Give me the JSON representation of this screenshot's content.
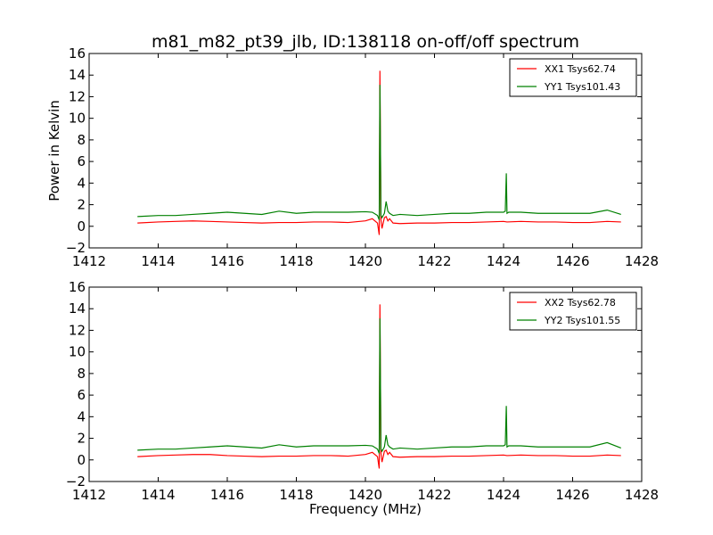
{
  "figure": {
    "title": "m81_m82_pt39_jlb, ID:138118 on-off/off spectrum",
    "xlabel": "Frequency (MHz)",
    "ylabel": "Power in Kelvin"
  },
  "colors": {
    "xx": "#ff0000",
    "yy": "#008000"
  },
  "chart_data": [
    {
      "type": "line",
      "title": "m81_m82_pt39_jlb, ID:138118 on-off/off spectrum",
      "xlabel": "",
      "ylabel": "Power in Kelvin",
      "xlim": [
        1412,
        1428
      ],
      "ylim": [
        -2,
        16
      ],
      "xticks": [
        "1412",
        "1414",
        "1416",
        "1418",
        "1420",
        "1422",
        "1424",
        "1426",
        "1428"
      ],
      "yticks": [
        "−2",
        "0",
        "2",
        "4",
        "6",
        "8",
        "10",
        "12",
        "14",
        "16"
      ],
      "grid": false,
      "legend_position": "top-right",
      "series": [
        {
          "name": "XX1 Tsys62.74",
          "color": "#ff0000",
          "x": [
            1413.4,
            1414.0,
            1414.5,
            1415.0,
            1415.5,
            1416.0,
            1416.5,
            1417.0,
            1417.5,
            1418.0,
            1418.5,
            1419.0,
            1419.5,
            1420.0,
            1420.2,
            1420.35,
            1420.4,
            1420.42,
            1420.45,
            1420.48,
            1420.55,
            1420.6,
            1420.65,
            1420.7,
            1420.8,
            1421.0,
            1421.5,
            1422.0,
            1422.5,
            1423.0,
            1423.5,
            1424.0,
            1424.1,
            1424.5,
            1425.0,
            1425.5,
            1426.0,
            1426.5,
            1427.0,
            1427.4
          ],
          "y": [
            0.3,
            0.4,
            0.45,
            0.5,
            0.45,
            0.4,
            0.35,
            0.3,
            0.35,
            0.35,
            0.4,
            0.4,
            0.35,
            0.5,
            0.7,
            0.3,
            -0.8,
            14.4,
            0.6,
            -0.2,
            0.8,
            0.9,
            0.5,
            0.7,
            0.3,
            0.25,
            0.3,
            0.3,
            0.35,
            0.35,
            0.4,
            0.45,
            0.4,
            0.45,
            0.4,
            0.4,
            0.35,
            0.35,
            0.45,
            0.4
          ]
        },
        {
          "name": "YY1 Tsys101.43",
          "color": "#008000",
          "x": [
            1413.4,
            1414.0,
            1414.5,
            1415.0,
            1415.5,
            1416.0,
            1416.5,
            1417.0,
            1417.5,
            1418.0,
            1418.5,
            1419.0,
            1419.5,
            1420.0,
            1420.2,
            1420.35,
            1420.4,
            1420.42,
            1420.45,
            1420.48,
            1420.55,
            1420.6,
            1420.65,
            1420.7,
            1420.8,
            1421.0,
            1421.5,
            1422.0,
            1422.5,
            1423.0,
            1423.5,
            1424.0,
            1424.05,
            1424.08,
            1424.1,
            1424.15,
            1424.5,
            1425.0,
            1425.5,
            1426.0,
            1426.5,
            1427.0,
            1427.4
          ],
          "y": [
            0.9,
            1.0,
            1.0,
            1.1,
            1.2,
            1.3,
            1.2,
            1.1,
            1.4,
            1.2,
            1.3,
            1.3,
            1.3,
            1.35,
            1.3,
            1.0,
            0.6,
            13.1,
            1.0,
            0.8,
            1.2,
            2.3,
            1.4,
            1.2,
            1.0,
            1.1,
            1.0,
            1.1,
            1.2,
            1.2,
            1.3,
            1.3,
            1.4,
            4.9,
            1.2,
            1.3,
            1.3,
            1.2,
            1.2,
            1.2,
            1.2,
            1.5,
            1.1
          ]
        }
      ]
    },
    {
      "type": "line",
      "title": "",
      "xlabel": "Frequency (MHz)",
      "ylabel": "",
      "xlim": [
        1412,
        1428
      ],
      "ylim": [
        -2,
        16
      ],
      "xticks": [
        "1412",
        "1414",
        "1416",
        "1418",
        "1420",
        "1422",
        "1424",
        "1426",
        "1428"
      ],
      "yticks": [
        "−2",
        "0",
        "2",
        "4",
        "6",
        "8",
        "10",
        "12",
        "14",
        "16"
      ],
      "grid": false,
      "legend_position": "top-right",
      "series": [
        {
          "name": "XX2 Tsys62.78",
          "color": "#ff0000",
          "x": [
            1413.4,
            1414.0,
            1414.5,
            1415.0,
            1415.5,
            1416.0,
            1416.5,
            1417.0,
            1417.5,
            1418.0,
            1418.5,
            1419.0,
            1419.5,
            1420.0,
            1420.2,
            1420.35,
            1420.4,
            1420.42,
            1420.45,
            1420.48,
            1420.55,
            1420.6,
            1420.65,
            1420.7,
            1420.8,
            1421.0,
            1421.5,
            1422.0,
            1422.5,
            1423.0,
            1423.5,
            1424.0,
            1424.1,
            1424.5,
            1425.0,
            1425.5,
            1426.0,
            1426.5,
            1427.0,
            1427.4
          ],
          "y": [
            0.3,
            0.4,
            0.45,
            0.5,
            0.5,
            0.4,
            0.35,
            0.3,
            0.35,
            0.35,
            0.4,
            0.4,
            0.35,
            0.5,
            0.7,
            0.3,
            -0.8,
            14.4,
            0.6,
            -0.2,
            0.8,
            0.9,
            0.5,
            0.7,
            0.3,
            0.25,
            0.3,
            0.3,
            0.35,
            0.35,
            0.4,
            0.45,
            0.4,
            0.45,
            0.4,
            0.4,
            0.35,
            0.35,
            0.45,
            0.4
          ]
        },
        {
          "name": "YY2 Tsys101.55",
          "color": "#008000",
          "x": [
            1413.4,
            1414.0,
            1414.5,
            1415.0,
            1415.5,
            1416.0,
            1416.5,
            1417.0,
            1417.5,
            1418.0,
            1418.5,
            1419.0,
            1419.5,
            1420.0,
            1420.2,
            1420.35,
            1420.4,
            1420.42,
            1420.45,
            1420.48,
            1420.55,
            1420.6,
            1420.65,
            1420.7,
            1420.8,
            1421.0,
            1421.5,
            1422.0,
            1422.5,
            1423.0,
            1423.5,
            1424.0,
            1424.05,
            1424.08,
            1424.1,
            1424.15,
            1424.5,
            1425.0,
            1425.5,
            1426.0,
            1426.5,
            1427.0,
            1427.4
          ],
          "y": [
            0.9,
            1.0,
            1.0,
            1.1,
            1.2,
            1.3,
            1.2,
            1.1,
            1.4,
            1.2,
            1.3,
            1.3,
            1.3,
            1.35,
            1.3,
            1.0,
            0.6,
            13.1,
            1.0,
            0.8,
            1.2,
            2.3,
            1.4,
            1.2,
            1.0,
            1.1,
            1.0,
            1.1,
            1.2,
            1.2,
            1.3,
            1.3,
            1.4,
            5.0,
            1.2,
            1.3,
            1.3,
            1.2,
            1.2,
            1.2,
            1.2,
            1.6,
            1.1
          ]
        }
      ]
    }
  ]
}
